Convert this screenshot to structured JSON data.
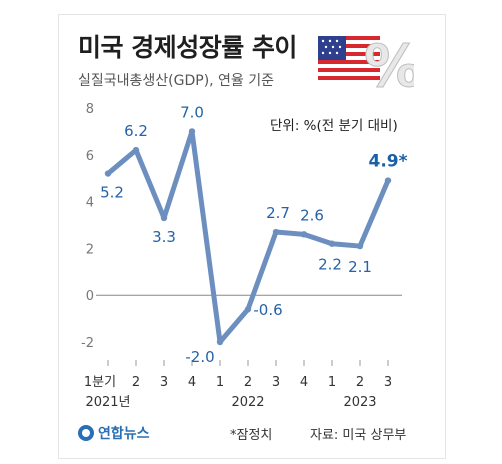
{
  "header": {
    "title": "미국 경제성장률 추이",
    "subtitle": "실질국내총생산(GDP), 연율 기준",
    "unit_note": "단위: %(전 분기 대비)",
    "flag_icon": "us-flag-percent-icon"
  },
  "footer": {
    "logo_text": "연합뉴스",
    "footnote": "*잠정치",
    "source": "자료: 미국 상무부"
  },
  "colors": {
    "line": "#6d8fbf",
    "label": "#2563a6",
    "highlight": "#1a5fa8",
    "axis": "#888888",
    "grid": "#dcdcdc"
  },
  "chart_data": {
    "type": "line",
    "categories": [
      "1분기",
      "2",
      "3",
      "4",
      "1",
      "2",
      "3",
      "4",
      "1",
      "2",
      "3"
    ],
    "year_labels": [
      {
        "text": "2021년",
        "index": 0
      },
      {
        "text": "2022",
        "index": 5
      },
      {
        "text": "2023",
        "index": 9
      }
    ],
    "values": [
      5.2,
      6.2,
      3.3,
      7.0,
      -2.0,
      -0.6,
      2.7,
      2.6,
      2.2,
      2.1,
      4.9
    ],
    "data_labels": [
      "5.2",
      "6.2",
      "3.3",
      "7.0",
      "-2.0",
      "-0.6",
      "2.7",
      "2.6",
      "2.2",
      "2.1",
      "4.9*"
    ],
    "ylim": [
      -2,
      8
    ],
    "yticks": [
      8,
      6,
      4,
      2,
      0,
      -2
    ],
    "title": "미국 경제성장률 추이",
    "xlabel": "",
    "ylabel": ""
  }
}
